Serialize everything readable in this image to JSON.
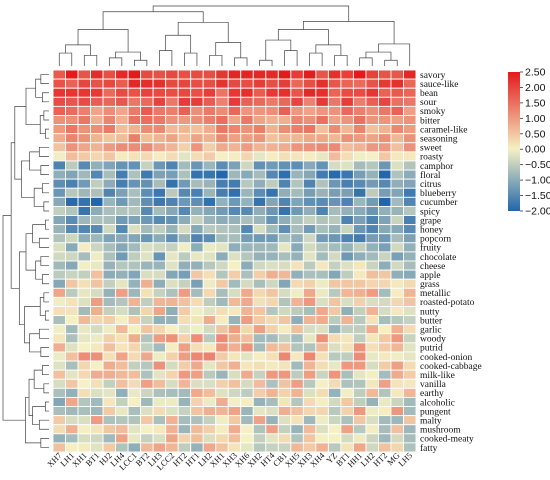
{
  "chart_data": {
    "type": "heatmap",
    "rows": [
      "savory",
      "sauce-like",
      "bean",
      "sour",
      "smoky",
      "bitter",
      "caramel-like",
      "seasoning",
      "sweet",
      "roasty",
      "camphor",
      "floral",
      "citrus",
      "blueberry",
      "cucumber",
      "spicy",
      "grape",
      "honey",
      "popcorn",
      "fruity",
      "chocolate",
      "cheese",
      "apple",
      "grass",
      "metallic",
      "roasted-potato",
      "nutty",
      "butter",
      "garlic",
      "woody",
      "putrid",
      "cooked-onion",
      "cooked-cabbage",
      "milk-like",
      "vanilla",
      "earthy",
      "alcoholic",
      "pungent",
      "malty",
      "mushroom",
      "cooked-meaty",
      "fatty"
    ],
    "columns": [
      "XH7",
      "LH1",
      "XH1",
      "BT1",
      "HJ2",
      "LH4",
      "LCC1",
      "BT2",
      "LH3",
      "LCC2",
      "HT2",
      "HT1",
      "LH2",
      "XH1",
      "XH3",
      "XH6",
      "XH2",
      "HT4",
      "CB1",
      "XH5",
      "XH3",
      "XH4",
      "YZ",
      "BT1",
      "HH1",
      "LH2",
      "HT2",
      "MG",
      "LH5"
    ],
    "color_scale": {
      "min": -2.0,
      "max": 2.5,
      "ticks": [
        2.5,
        2.0,
        1.5,
        1.0,
        0.5,
        0.0,
        -0.5,
        -1.0,
        -1.5,
        -2.0
      ],
      "tick_labels": [
        "2.50",
        "2.00",
        "1.50",
        "1.00",
        "0.50",
        "0.00",
        "−0.50",
        "−1.00",
        "−1.50",
        "−2.00"
      ],
      "colors": {
        "low": "#2166ac",
        "mid": "#f5f1c4",
        "high": "#e31a1c"
      }
    },
    "row_means": [
      2.2,
      2.0,
      1.9,
      1.7,
      1.3,
      1.1,
      1.0,
      0.9,
      0.8,
      0.2,
      -0.9,
      -1.3,
      -1.2,
      -1.2,
      -1.4,
      -1.1,
      -1.0,
      -0.9,
      -1.0,
      -0.6,
      -0.7,
      -0.5,
      -0.2,
      -0.2,
      0.0,
      0.1,
      0.0,
      0.0,
      0.1,
      0.2,
      0.2,
      0.3,
      0.2,
      0.1,
      0.0,
      0.0,
      -0.1,
      0.1,
      0.1,
      0.0,
      0.0,
      -0.1
    ],
    "title": "",
    "xlabel": "",
    "ylabel": "",
    "legend_position": "right"
  }
}
